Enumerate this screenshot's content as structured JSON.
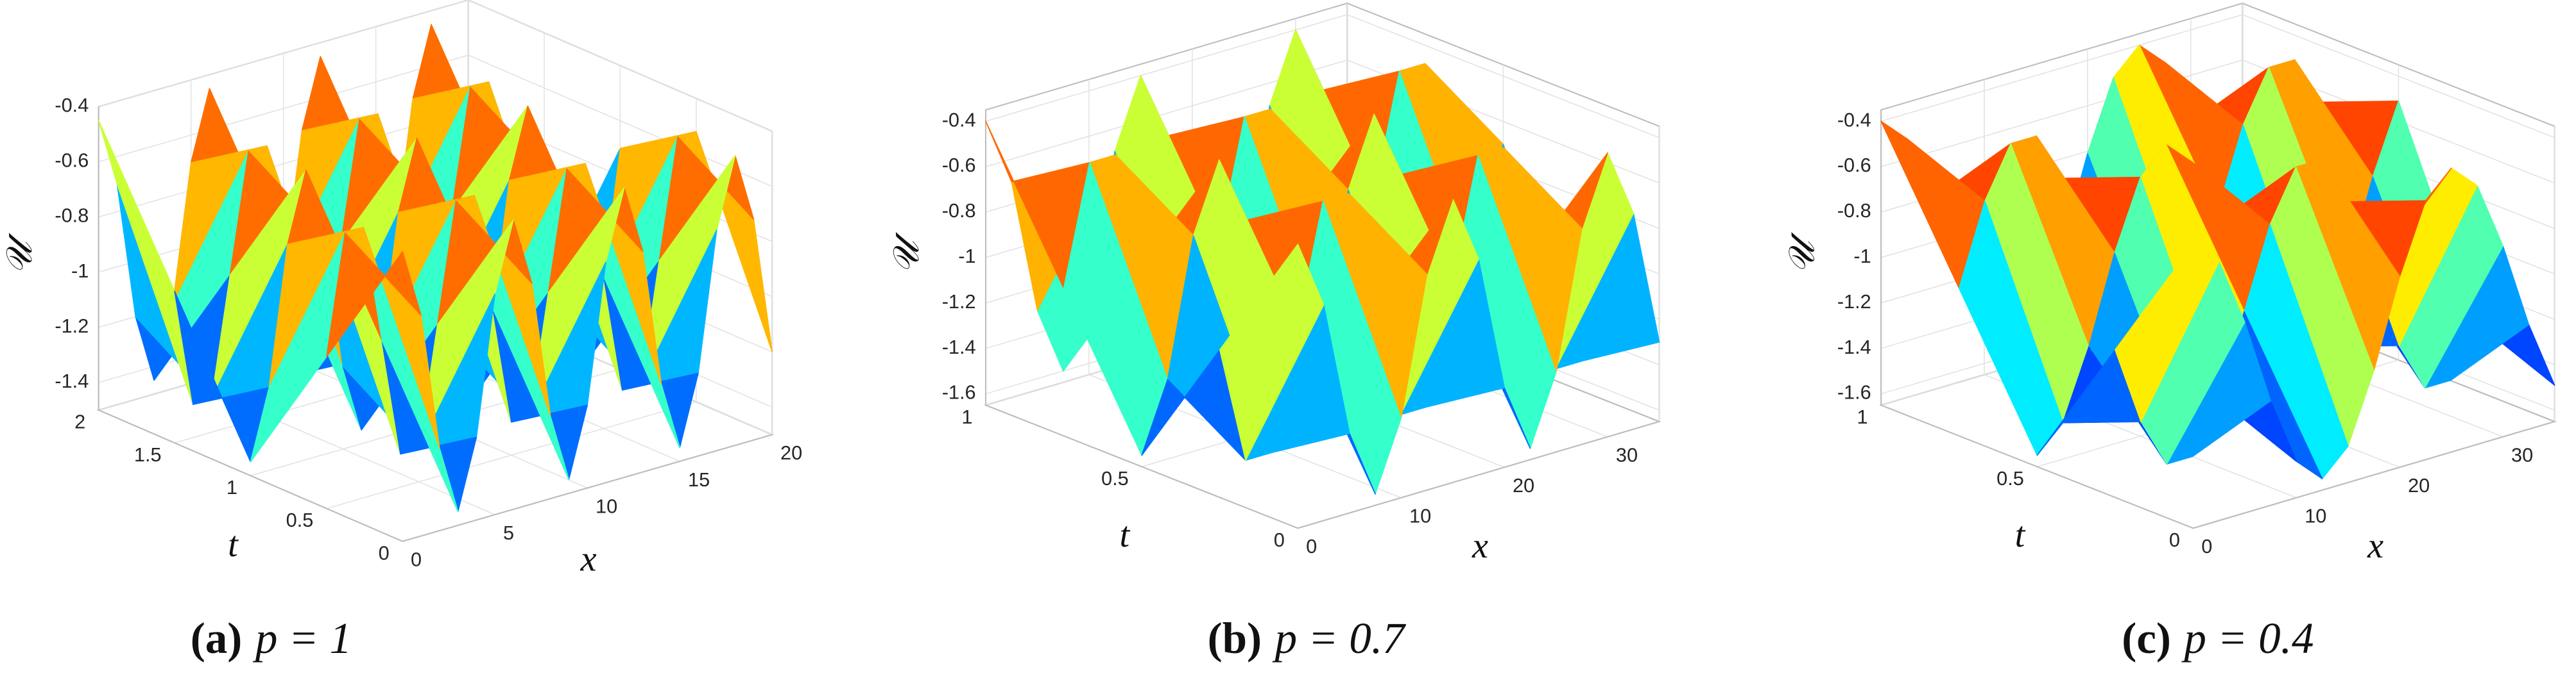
{
  "chart_data": [
    {
      "type": "surface",
      "label": "(a)",
      "title": "p = 1",
      "x_label": "x",
      "t_label": "t",
      "z_label": "𝒰",
      "colormap": "jet",
      "grid": true,
      "x": [
        0,
        1,
        2,
        3,
        4,
        5,
        6,
        7,
        8,
        9,
        10,
        11,
        12,
        13,
        14,
        15,
        16,
        17,
        18,
        19,
        20
      ],
      "t": [
        0,
        0.5,
        1,
        1.5,
        2
      ],
      "z": [
        [
          -0.45,
          -0.7,
          -1.2,
          -1.45,
          -1.2,
          -0.7,
          -0.45,
          -0.7,
          -1.2,
          -1.45,
          -1.2,
          -0.7,
          -0.45,
          -0.7,
          -1.2,
          -1.45,
          -1.2,
          -0.7,
          -0.45,
          -0.7,
          -1.2
        ],
        [
          -0.95,
          -0.52,
          -0.52,
          -0.95,
          -1.38,
          -1.38,
          -0.95,
          -0.52,
          -0.52,
          -0.95,
          -1.38,
          -1.38,
          -0.95,
          -0.52,
          -0.52,
          -0.95,
          -1.38,
          -1.38,
          -0.95,
          -0.52,
          -0.52
        ],
        [
          -1.45,
          -1.2,
          -0.7,
          -0.45,
          -0.7,
          -1.2,
          -1.45,
          -1.2,
          -0.7,
          -0.45,
          -0.7,
          -1.2,
          -1.45,
          -1.2,
          -0.7,
          -0.45,
          -0.7,
          -1.2,
          -1.45,
          -1.2,
          -0.7
        ],
        [
          -0.95,
          -1.38,
          -1.38,
          -0.95,
          -0.52,
          -0.52,
          -0.95,
          -1.38,
          -1.38,
          -0.95,
          -0.52,
          -0.52,
          -0.95,
          -1.38,
          -1.38,
          -0.95,
          -0.52,
          -0.52,
          -0.95,
          -1.38,
          -1.38
        ],
        [
          -0.45,
          -0.7,
          -1.2,
          -1.45,
          -1.2,
          -0.7,
          -0.45,
          -0.7,
          -1.2,
          -1.45,
          -1.2,
          -0.7,
          -0.45,
          -0.7,
          -1.2,
          -1.45,
          -1.2,
          -0.7,
          -0.45,
          -0.7,
          -1.2
        ]
      ],
      "xlim": [
        0,
        20
      ],
      "xticks": [
        0,
        5,
        10,
        15,
        20
      ],
      "tlim": [
        0,
        2
      ],
      "tticks": [
        0,
        0.5,
        1,
        1.5,
        2
      ],
      "zlim": [
        -1.5,
        -0.4
      ],
      "zticks": [
        -0.4,
        -0.6,
        -0.8,
        -1,
        -1.2,
        -1.4
      ]
    },
    {
      "type": "surface",
      "label": "(b)",
      "title": "p = 0.7",
      "x_label": "x",
      "t_label": "t",
      "z_label": "𝒰",
      "colormap": "jet",
      "grid": true,
      "x": [
        0,
        2.5,
        5,
        7.5,
        10,
        12.5,
        15,
        17.5,
        20,
        22.5,
        25,
        27.5,
        30,
        32.5,
        35
      ],
      "t": [
        0,
        0.25,
        0.5,
        0.75,
        1
      ],
      "z": [
        [
          -0.4,
          -0.7,
          -1.3,
          -1.6,
          -1.3,
          -0.7,
          -0.4,
          -0.7,
          -1.3,
          -1.6,
          -1.3,
          -0.7,
          -0.4,
          -0.7,
          -1.3
        ],
        [
          -1,
          -1.52,
          -1.52,
          -1,
          -0.48,
          -0.48,
          -1,
          -1.52,
          -1.52,
          -1,
          -0.48,
          -0.48,
          -1,
          -1.52,
          -1.52
        ],
        [
          -1.6,
          -1.3,
          -0.7,
          -0.4,
          -0.7,
          -1.3,
          -1.6,
          -1.3,
          -0.7,
          -0.4,
          -0.7,
          -1.3,
          -1.6,
          -1.3,
          -0.7
        ],
        [
          -1,
          -0.48,
          -0.48,
          -1,
          -1.52,
          -1.52,
          -1,
          -0.48,
          -0.48,
          -1,
          -1.52,
          -1.52,
          -1,
          -0.48,
          -0.48
        ],
        [
          -0.4,
          -0.7,
          -1.3,
          -1.6,
          -1.3,
          -0.7,
          -0.4,
          -0.7,
          -1.3,
          -1.6,
          -1.3,
          -0.7,
          -0.4,
          -0.7,
          -1.3
        ]
      ],
      "xlim": [
        0,
        35
      ],
      "xticks": [
        0,
        10,
        20,
        30
      ],
      "tlim": [
        0,
        1
      ],
      "tticks": [
        0,
        0.5,
        1
      ],
      "zlim": [
        -1.65,
        -0.35
      ],
      "zticks": [
        -0.4,
        -0.6,
        -0.8,
        -1,
        -1.2,
        -1.4,
        -1.6
      ]
    },
    {
      "type": "surface",
      "label": "(c)",
      "title": "p = 0.4",
      "x_label": "x",
      "t_label": "t",
      "z_label": "𝒰",
      "colormap": "jet",
      "grid": true,
      "x": [
        0,
        2.5,
        5,
        7.5,
        10,
        12.5,
        15,
        17.5,
        20,
        22.5,
        25,
        27.5,
        30,
        32.5,
        35
      ],
      "t": [
        0,
        0.25,
        0.5,
        0.75,
        1
      ],
      "z": [
        [
          -0.4,
          -0.51,
          -0.81,
          -1.19,
          -1.49,
          -1.6,
          -1.49,
          -1.19,
          -0.81,
          -0.51,
          -0.4,
          -0.51,
          -0.81,
          -1.19,
          -1.49
        ],
        [
          -1,
          -1.35,
          -1.57,
          -1.57,
          -1.35,
          -1,
          -0.65,
          -0.43,
          -0.43,
          -0.65,
          -1,
          -1.35,
          -1.57,
          -1.57,
          -1.35
        ],
        [
          -1.6,
          -1.49,
          -1.19,
          -0.81,
          -0.51,
          -0.4,
          -0.51,
          -0.81,
          -1.19,
          -1.49,
          -1.6,
          -1.49,
          -1.19,
          -0.81,
          -0.51
        ],
        [
          -1,
          -0.65,
          -0.43,
          -0.43,
          -0.65,
          -1,
          -1.35,
          -1.57,
          -1.57,
          -1.35,
          -1,
          -0.65,
          -0.43,
          -0.43,
          -0.65
        ],
        [
          -0.4,
          -0.51,
          -0.81,
          -1.19,
          -1.49,
          -1.6,
          -1.49,
          -1.19,
          -0.81,
          -0.51,
          -0.4,
          -0.51,
          -0.81,
          -1.19,
          -1.49
        ]
      ],
      "xlim": [
        0,
        35
      ],
      "xticks": [
        0,
        10,
        20,
        30
      ],
      "tlim": [
        0,
        1
      ],
      "tticks": [
        0,
        0.5,
        1
      ],
      "zlim": [
        -1.65,
        -0.35
      ],
      "zticks": [
        -0.4,
        -0.6,
        -0.8,
        -1,
        -1.2,
        -1.4,
        -1.6
      ]
    }
  ]
}
